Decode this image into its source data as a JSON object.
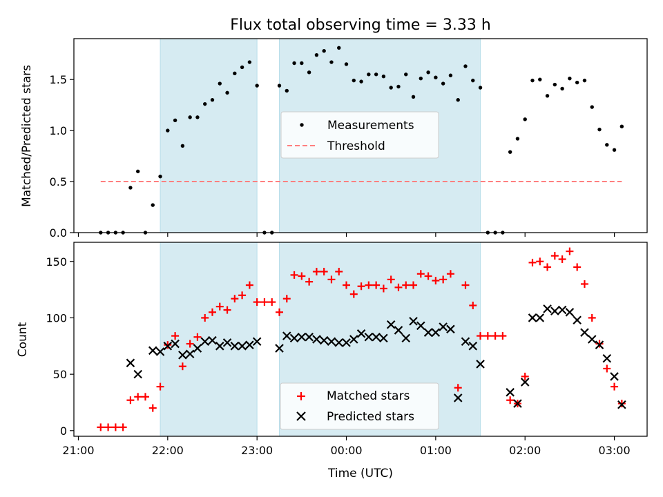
{
  "chart_data": [
    {
      "type": "scatter",
      "title": "Flux total observing time = 3.33 h",
      "xlabel": "",
      "ylabel": "Matched/Predicted stars",
      "xlim": [
        "20:57",
        "03:22"
      ],
      "ylim": [
        0,
        1.9
      ],
      "x_ticks": [
        "21:00",
        "22:00",
        "23:00",
        "00:00",
        "01:00",
        "02:00",
        "03:00"
      ],
      "y_ticks": [
        0.0,
        0.5,
        1.0,
        1.5
      ],
      "grid": false,
      "legend": "center",
      "shaded_intervals": [
        [
          "21:55",
          "23:00"
        ],
        [
          "23:15",
          "01:30"
        ]
      ],
      "series": [
        {
          "name": "Measurements",
          "marker": "dot",
          "color": "#000000",
          "points": [
            [
              "21:15",
              0.0
            ],
            [
              "21:20",
              0.0
            ],
            [
              "21:25",
              0.0
            ],
            [
              "21:30",
              0.0
            ],
            [
              "21:35",
              0.44
            ],
            [
              "21:40",
              0.6
            ],
            [
              "21:45",
              0.0
            ],
            [
              "21:50",
              0.27
            ],
            [
              "21:55",
              0.55
            ],
            [
              "22:00",
              1.0
            ],
            [
              "22:05",
              1.1
            ],
            [
              "22:10",
              0.85
            ],
            [
              "22:15",
              1.13
            ],
            [
              "22:20",
              1.13
            ],
            [
              "22:25",
              1.26
            ],
            [
              "22:30",
              1.3
            ],
            [
              "22:35",
              1.46
            ],
            [
              "22:40",
              1.37
            ],
            [
              "22:45",
              1.56
            ],
            [
              "22:50",
              1.62
            ],
            [
              "22:55",
              1.67
            ],
            [
              "23:00",
              1.44
            ],
            [
              "23:05",
              0.0
            ],
            [
              "23:10",
              0.0
            ],
            [
              "23:15",
              1.44
            ],
            [
              "23:20",
              1.39
            ],
            [
              "23:25",
              1.66
            ],
            [
              "23:30",
              1.66
            ],
            [
              "23:35",
              1.57
            ],
            [
              "23:40",
              1.74
            ],
            [
              "23:45",
              1.78
            ],
            [
              "23:50",
              1.67
            ],
            [
              "23:55",
              1.81
            ],
            [
              "00:00",
              1.65
            ],
            [
              "00:05",
              1.49
            ],
            [
              "00:10",
              1.48
            ],
            [
              "00:15",
              1.55
            ],
            [
              "00:20",
              1.55
            ],
            [
              "00:25",
              1.53
            ],
            [
              "00:30",
              1.42
            ],
            [
              "00:35",
              1.43
            ],
            [
              "00:40",
              1.55
            ],
            [
              "00:45",
              1.33
            ],
            [
              "00:50",
              1.51
            ],
            [
              "00:55",
              1.57
            ],
            [
              "01:00",
              1.52
            ],
            [
              "01:05",
              1.46
            ],
            [
              "01:10",
              1.54
            ],
            [
              "01:15",
              1.3
            ],
            [
              "01:20",
              1.63
            ],
            [
              "01:25",
              1.49
            ],
            [
              "01:30",
              1.42
            ],
            [
              "01:35",
              0.0
            ],
            [
              "01:40",
              0.0
            ],
            [
              "01:45",
              0.0
            ],
            [
              "01:50",
              0.79
            ],
            [
              "01:55",
              0.92
            ],
            [
              "02:00",
              1.11
            ],
            [
              "02:05",
              1.49
            ],
            [
              "02:10",
              1.5
            ],
            [
              "02:15",
              1.34
            ],
            [
              "02:20",
              1.45
            ],
            [
              "02:25",
              1.41
            ],
            [
              "02:30",
              1.51
            ],
            [
              "02:35",
              1.47
            ],
            [
              "02:40",
              1.49
            ],
            [
              "02:45",
              1.23
            ],
            [
              "02:50",
              1.01
            ],
            [
              "02:55",
              0.86
            ],
            [
              "03:00",
              0.81
            ],
            [
              "03:05",
              1.04
            ]
          ]
        },
        {
          "name": "Threshold",
          "marker": "dashed-line",
          "color": "#ff7f7f",
          "points": [
            [
              "21:15",
              0.5
            ],
            [
              "03:05",
              0.5
            ]
          ]
        }
      ]
    },
    {
      "type": "scatter",
      "title": "",
      "xlabel": "Time (UTC)",
      "ylabel": "Count",
      "xlim": [
        "20:57",
        "03:22"
      ],
      "ylim": [
        -5,
        167
      ],
      "x_ticks": [
        "21:00",
        "22:00",
        "23:00",
        "00:00",
        "01:00",
        "02:00",
        "03:00"
      ],
      "y_ticks": [
        0,
        50,
        100,
        150
      ],
      "grid": false,
      "legend": "lower center",
      "shaded_intervals": [
        [
          "21:55",
          "23:00"
        ],
        [
          "23:15",
          "01:30"
        ]
      ],
      "series": [
        {
          "name": "Matched stars",
          "marker": "plus",
          "color": "#ff0000",
          "points": [
            [
              "21:15",
              3
            ],
            [
              "21:20",
              3
            ],
            [
              "21:25",
              3
            ],
            [
              "21:30",
              3
            ],
            [
              "21:35",
              27
            ],
            [
              "21:40",
              30
            ],
            [
              "21:45",
              30
            ],
            [
              "21:50",
              20
            ],
            [
              "21:55",
              39
            ],
            [
              "22:00",
              76
            ],
            [
              "22:05",
              84
            ],
            [
              "22:10",
              57
            ],
            [
              "22:15",
              77
            ],
            [
              "22:20",
              83
            ],
            [
              "22:25",
              100
            ],
            [
              "22:30",
              105
            ],
            [
              "22:35",
              110
            ],
            [
              "22:40",
              107
            ],
            [
              "22:45",
              117
            ],
            [
              "22:50",
              120
            ],
            [
              "22:55",
              129
            ],
            [
              "23:00",
              114
            ],
            [
              "23:05",
              114
            ],
            [
              "23:10",
              114
            ],
            [
              "23:15",
              105
            ],
            [
              "23:20",
              117
            ],
            [
              "23:25",
              138
            ],
            [
              "23:30",
              137
            ],
            [
              "23:35",
              132
            ],
            [
              "23:40",
              141
            ],
            [
              "23:45",
              141
            ],
            [
              "23:50",
              134
            ],
            [
              "23:55",
              141
            ],
            [
              "00:00",
              129
            ],
            [
              "00:05",
              121
            ],
            [
              "00:10",
              128
            ],
            [
              "00:15",
              129
            ],
            [
              "00:20",
              129
            ],
            [
              "00:25",
              126
            ],
            [
              "00:30",
              134
            ],
            [
              "00:35",
              127
            ],
            [
              "00:40",
              129
            ],
            [
              "00:45",
              129
            ],
            [
              "00:50",
              139
            ],
            [
              "00:55",
              137
            ],
            [
              "01:00",
              133
            ],
            [
              "01:05",
              134
            ],
            [
              "01:10",
              139
            ],
            [
              "01:15",
              38
            ],
            [
              "01:20",
              129
            ],
            [
              "01:25",
              111
            ],
            [
              "01:30",
              84
            ],
            [
              "01:35",
              84
            ],
            [
              "01:40",
              84
            ],
            [
              "01:45",
              84
            ],
            [
              "01:50",
              27
            ],
            [
              "01:55",
              24
            ],
            [
              "02:00",
              48
            ],
            [
              "02:05",
              149
            ],
            [
              "02:10",
              150
            ],
            [
              "02:15",
              145
            ],
            [
              "02:20",
              155
            ],
            [
              "02:25",
              152
            ],
            [
              "02:30",
              159
            ],
            [
              "02:35",
              145
            ],
            [
              "02:40",
              130
            ],
            [
              "02:45",
              100
            ],
            [
              "02:50",
              77
            ],
            [
              "02:55",
              55
            ],
            [
              "03:00",
              39
            ],
            [
              "03:05",
              24
            ]
          ]
        },
        {
          "name": "Predicted stars",
          "marker": "x",
          "color": "#000000",
          "points": [
            [
              "21:35",
              60
            ],
            [
              "21:40",
              50
            ],
            [
              "21:50",
              71
            ],
            [
              "21:55",
              70
            ],
            [
              "22:00",
              75
            ],
            [
              "22:05",
              77
            ],
            [
              "22:10",
              67
            ],
            [
              "22:15",
              68
            ],
            [
              "22:20",
              73
            ],
            [
              "22:25",
              79
            ],
            [
              "22:30",
              80
            ],
            [
              "22:35",
              75
            ],
            [
              "22:40",
              78
            ],
            [
              "22:45",
              75
            ],
            [
              "22:50",
              75
            ],
            [
              "22:55",
              76
            ],
            [
              "23:00",
              79
            ],
            [
              "23:15",
              73
            ],
            [
              "23:20",
              84
            ],
            [
              "23:25",
              82
            ],
            [
              "23:30",
              83
            ],
            [
              "23:35",
              83
            ],
            [
              "23:40",
              81
            ],
            [
              "23:45",
              80
            ],
            [
              "23:50",
              79
            ],
            [
              "23:55",
              78
            ],
            [
              "00:00",
              78
            ],
            [
              "00:05",
              81
            ],
            [
              "00:10",
              86
            ],
            [
              "00:15",
              83
            ],
            [
              "00:20",
              83
            ],
            [
              "00:25",
              82
            ],
            [
              "00:30",
              94
            ],
            [
              "00:35",
              89
            ],
            [
              "00:40",
              82
            ],
            [
              "00:45",
              97
            ],
            [
              "00:50",
              93
            ],
            [
              "00:55",
              87
            ],
            [
              "01:00",
              87
            ],
            [
              "01:05",
              92
            ],
            [
              "01:10",
              90
            ],
            [
              "01:15",
              29
            ],
            [
              "01:20",
              79
            ],
            [
              "01:25",
              75
            ],
            [
              "01:30",
              59
            ],
            [
              "01:50",
              34
            ],
            [
              "01:55",
              24
            ],
            [
              "02:00",
              43
            ],
            [
              "02:05",
              100
            ],
            [
              "02:10",
              100
            ],
            [
              "02:15",
              108
            ],
            [
              "02:20",
              106
            ],
            [
              "02:25",
              107
            ],
            [
              "02:30",
              105
            ],
            [
              "02:35",
              98
            ],
            [
              "02:40",
              87
            ],
            [
              "02:45",
              81
            ],
            [
              "02:50",
              76
            ],
            [
              "02:55",
              64
            ],
            [
              "03:00",
              48
            ],
            [
              "03:05",
              23
            ]
          ]
        }
      ]
    }
  ]
}
